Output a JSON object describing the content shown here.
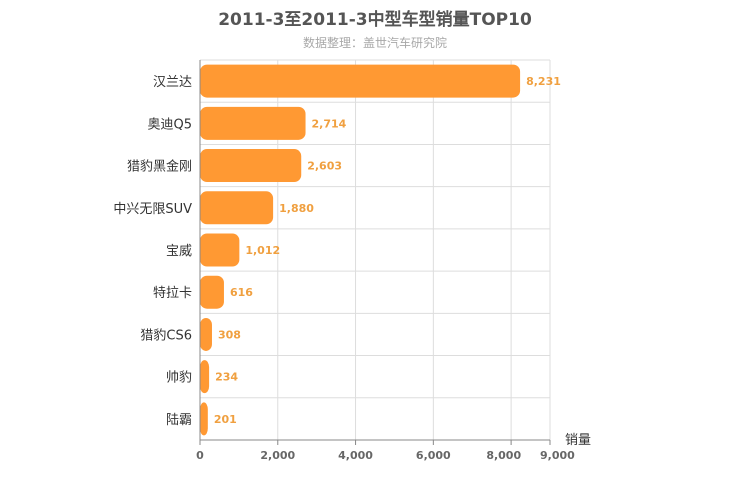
{
  "title": "2011-3至2011-3中型车型销量TOP10",
  "subtitle": "数据整理：盖世汽车研究院",
  "colors": {
    "bar": "#ff9933",
    "grid": "#dddddd",
    "axis": "#888888",
    "value_label": "#f0a040"
  },
  "chart_data": {
    "type": "bar",
    "orientation": "horizontal",
    "title": "2011-3至2011-3中型车型销量TOP10",
    "subtitle": "数据整理：盖世汽车研究院",
    "categories": [
      "汉兰达",
      "奥迪Q5",
      "猎豹黑金刚",
      "中兴无限SUV",
      "宝威",
      "特拉卡",
      "猎豹CS6",
      "帅豹",
      "陆霸"
    ],
    "values": [
      8231,
      2714,
      2603,
      1880,
      1012,
      616,
      308,
      234,
      201
    ],
    "value_labels": [
      "8,231",
      "2,714",
      "2,603",
      "1,880",
      "1,012",
      "616",
      "308",
      "234",
      "201"
    ],
    "xlabel": "销量",
    "ylabel": "",
    "xlim": [
      0,
      9000
    ],
    "ticks": [
      0,
      2000,
      4000,
      6000,
      8000,
      9000
    ],
    "tick_labels": [
      "0",
      "2,000",
      "4,000",
      "6,000",
      "8,000",
      "9,000"
    ],
    "grid": true,
    "legend": "none"
  }
}
